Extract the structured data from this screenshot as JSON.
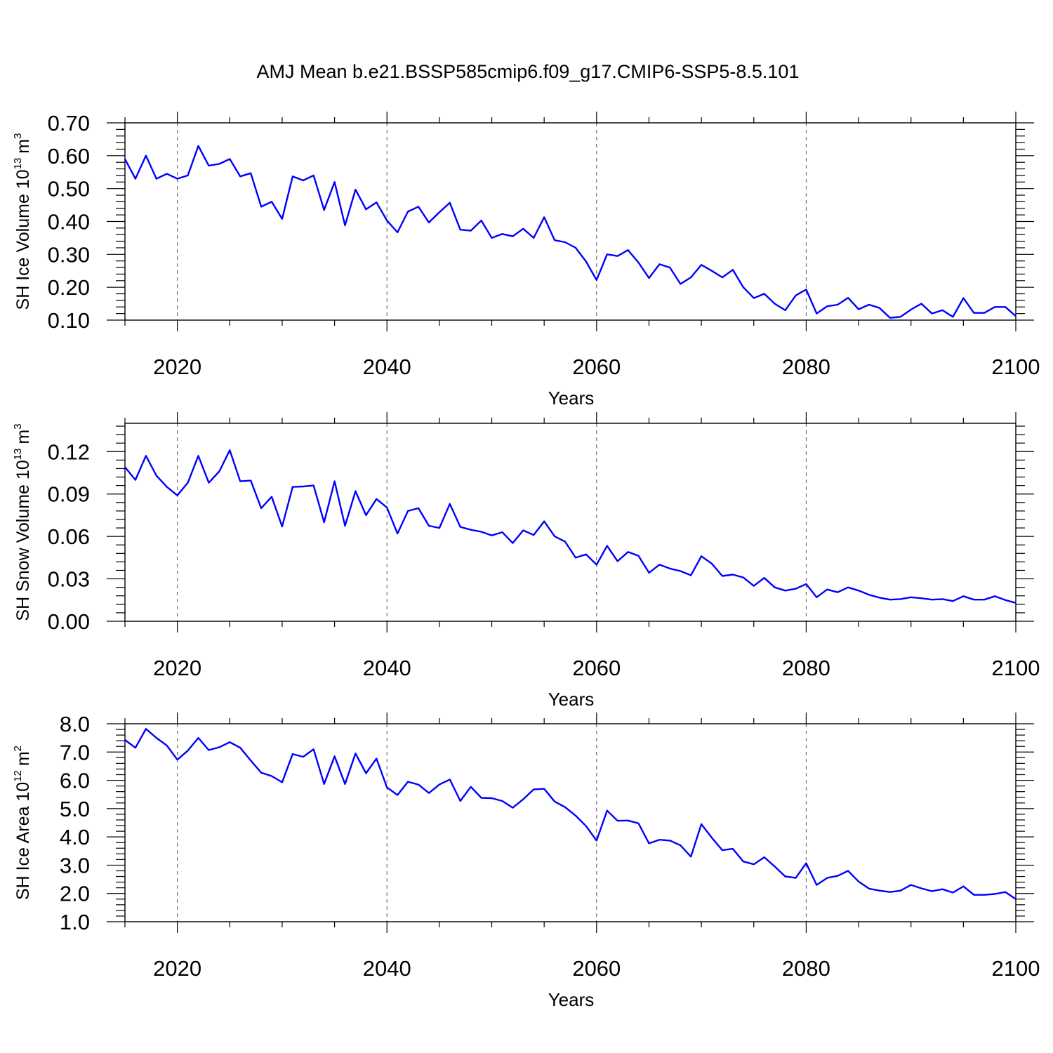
{
  "title": "AMJ Mean b.e21.BSSP585cmip6.f09_g17.CMIP6-SSP5-8.5.101",
  "colors": {
    "line": "#0000ff",
    "axes": "#000000",
    "grid": "#555555"
  },
  "chart_data": [
    {
      "type": "line",
      "xlabel": "Years",
      "ylabel": {
        "text": "SH Ice Volume 10",
        "exponent": "13",
        "unit": "m",
        "unit_exponent": "3"
      },
      "xlim": [
        2015,
        2100
      ],
      "ylim": [
        0.1,
        0.7
      ],
      "x_ticks": [
        2020,
        2040,
        2060,
        2080,
        2100
      ],
      "x_tick_labels": [
        "2020",
        "2040",
        "2060",
        "2080",
        "2100"
      ],
      "y_ticks": [
        0.1,
        0.2,
        0.3,
        0.4,
        0.5,
        0.6,
        0.7
      ],
      "y_tick_labels": [
        "0.10",
        "0.20",
        "0.30",
        "0.40",
        "0.50",
        "0.60",
        "0.70"
      ],
      "grid": "vertical dashed at major x ticks",
      "x_start": 2015,
      "values": [
        0.59,
        0.53,
        0.6,
        0.53,
        0.545,
        0.53,
        0.54,
        0.63,
        0.57,
        0.575,
        0.59,
        0.537,
        0.547,
        0.445,
        0.46,
        0.408,
        0.537,
        0.525,
        0.54,
        0.435,
        0.52,
        0.388,
        0.497,
        0.437,
        0.458,
        0.403,
        0.367,
        0.43,
        0.445,
        0.397,
        0.428,
        0.457,
        0.375,
        0.372,
        0.403,
        0.35,
        0.362,
        0.355,
        0.378,
        0.35,
        0.413,
        0.343,
        0.337,
        0.32,
        0.278,
        0.222,
        0.3,
        0.295,
        0.313,
        0.275,
        0.228,
        0.27,
        0.26,
        0.21,
        0.23,
        0.268,
        0.25,
        0.23,
        0.253,
        0.2,
        0.167,
        0.18,
        0.15,
        0.13,
        0.175,
        0.193,
        0.12,
        0.142,
        0.147,
        0.168,
        0.133,
        0.147,
        0.137,
        0.107,
        0.11,
        0.132,
        0.15,
        0.12,
        0.13,
        0.11,
        0.167,
        0.122,
        0.122,
        0.14,
        0.14,
        0.112
      ]
    },
    {
      "type": "line",
      "xlabel": "Years",
      "ylabel": {
        "text": "SH Snow Volume 10",
        "exponent": "13",
        "unit": "m",
        "unit_exponent": "3"
      },
      "xlim": [
        2015,
        2100
      ],
      "ylim": [
        0.0,
        0.14
      ],
      "x_ticks": [
        2020,
        2040,
        2060,
        2080,
        2100
      ],
      "x_tick_labels": [
        "2020",
        "2040",
        "2060",
        "2080",
        "2100"
      ],
      "y_ticks": [
        0.0,
        0.03,
        0.06,
        0.09,
        0.12
      ],
      "y_tick_labels": [
        "0.00",
        "0.03",
        "0.06",
        "0.09",
        "0.12"
      ],
      "grid": "vertical dashed at major x ticks",
      "x_start": 2015,
      "values": [
        0.109,
        0.1,
        0.117,
        0.103,
        0.095,
        0.089,
        0.098,
        0.117,
        0.098,
        0.106,
        0.121,
        0.099,
        0.0995,
        0.08,
        0.088,
        0.067,
        0.095,
        0.0953,
        0.096,
        0.07,
        0.099,
        0.0675,
        0.092,
        0.075,
        0.0865,
        0.0805,
        0.062,
        0.078,
        0.08,
        0.0675,
        0.066,
        0.083,
        0.0667,
        0.0647,
        0.0633,
        0.0607,
        0.063,
        0.0553,
        0.0643,
        0.061,
        0.0707,
        0.06,
        0.0563,
        0.045,
        0.0473,
        0.04,
        0.0533,
        0.0425,
        0.049,
        0.0463,
        0.0343,
        0.04,
        0.0373,
        0.0355,
        0.0325,
        0.046,
        0.0407,
        0.032,
        0.033,
        0.031,
        0.025,
        0.0307,
        0.024,
        0.0217,
        0.023,
        0.0263,
        0.017,
        0.0225,
        0.0205,
        0.024,
        0.0217,
        0.0187,
        0.0167,
        0.0153,
        0.0157,
        0.017,
        0.0163,
        0.0153,
        0.0157,
        0.0143,
        0.0177,
        0.0153,
        0.0153,
        0.0177,
        0.015,
        0.013
      ]
    },
    {
      "type": "line",
      "xlabel": "Years",
      "ylabel": {
        "text": "SH Ice Area 10",
        "exponent": "12",
        "unit": "m",
        "unit_exponent": "2"
      },
      "xlim": [
        2015,
        2100
      ],
      "ylim": [
        1.0,
        8.0
      ],
      "x_ticks": [
        2020,
        2040,
        2060,
        2080,
        2100
      ],
      "x_tick_labels": [
        "2020",
        "2040",
        "2060",
        "2080",
        "2100"
      ],
      "y_ticks": [
        1.0,
        2.0,
        3.0,
        4.0,
        5.0,
        6.0,
        7.0,
        8.0
      ],
      "y_tick_labels": [
        "1.0",
        "2.0",
        "3.0",
        "4.0",
        "5.0",
        "6.0",
        "7.0",
        "8.0"
      ],
      "grid": "vertical dashed at major x ticks",
      "x_start": 2015,
      "values": [
        7.43,
        7.15,
        7.82,
        7.5,
        7.23,
        6.73,
        7.05,
        7.5,
        7.07,
        7.17,
        7.35,
        7.15,
        6.7,
        6.27,
        6.15,
        5.93,
        6.93,
        6.83,
        7.1,
        5.87,
        6.85,
        5.87,
        6.95,
        6.25,
        6.77,
        5.75,
        5.48,
        5.95,
        5.85,
        5.55,
        5.85,
        6.03,
        5.27,
        5.77,
        5.38,
        5.37,
        5.27,
        5.03,
        5.33,
        5.68,
        5.7,
        5.25,
        5.05,
        4.75,
        4.38,
        3.87,
        4.93,
        4.57,
        4.58,
        4.48,
        3.77,
        3.9,
        3.87,
        3.7,
        3.3,
        4.45,
        3.97,
        3.53,
        3.58,
        3.13,
        3.03,
        3.28,
        2.95,
        2.6,
        2.55,
        3.07,
        2.3,
        2.55,
        2.62,
        2.8,
        2.42,
        2.17,
        2.1,
        2.05,
        2.1,
        2.3,
        2.18,
        2.08,
        2.15,
        2.03,
        2.25,
        1.95,
        1.95,
        1.98,
        2.05,
        1.8
      ]
    }
  ]
}
